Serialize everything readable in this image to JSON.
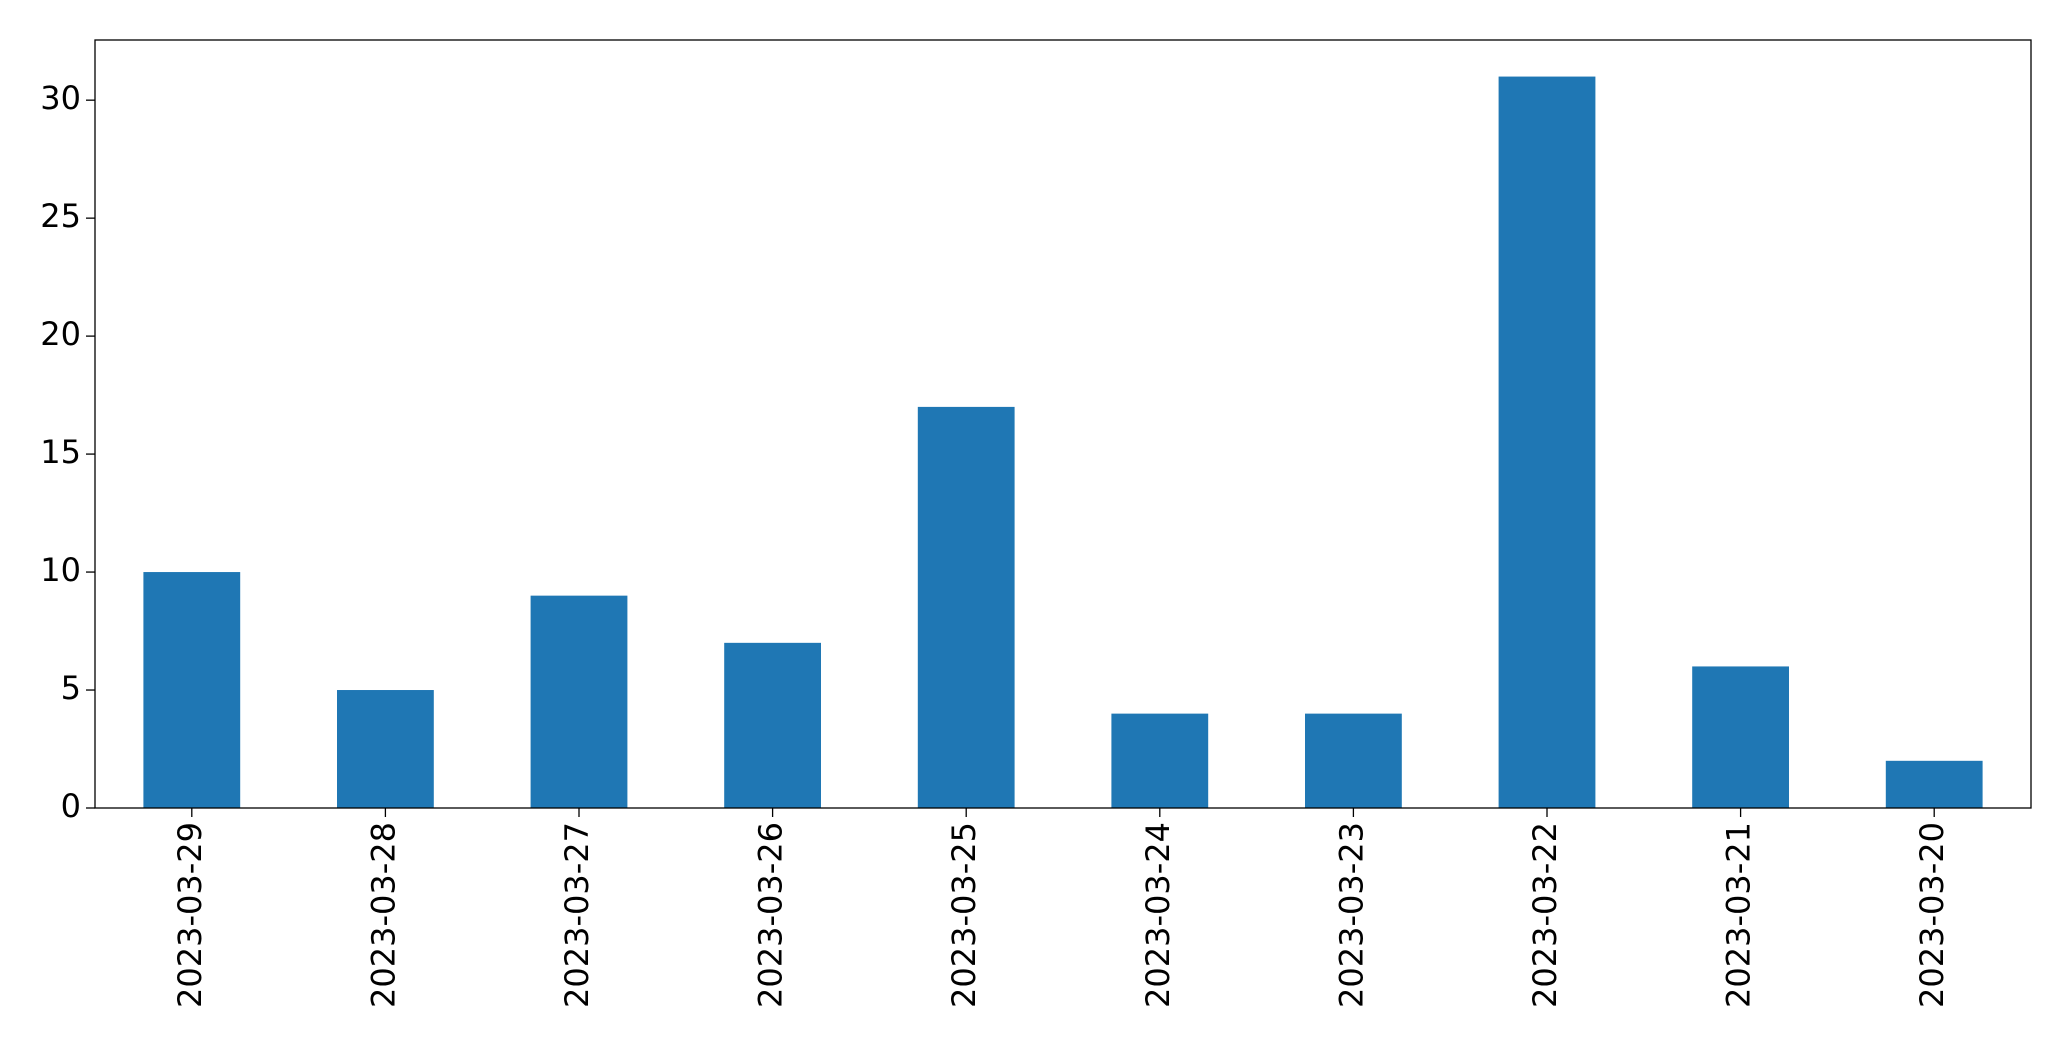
{
  "chart_data": {
    "type": "bar",
    "categories": [
      "2023-03-29",
      "2023-03-28",
      "2023-03-27",
      "2023-03-26",
      "2023-03-25",
      "2023-03-24",
      "2023-03-23",
      "2023-03-22",
      "2023-03-21",
      "2023-03-20"
    ],
    "values": [
      10,
      5,
      9,
      7,
      17,
      4,
      4,
      31,
      6,
      2
    ],
    "color": "#1f77b4",
    "ylim": [
      0,
      32.55
    ],
    "yticks": [
      0,
      5,
      10,
      15,
      20,
      25,
      30
    ],
    "grid": false
  }
}
